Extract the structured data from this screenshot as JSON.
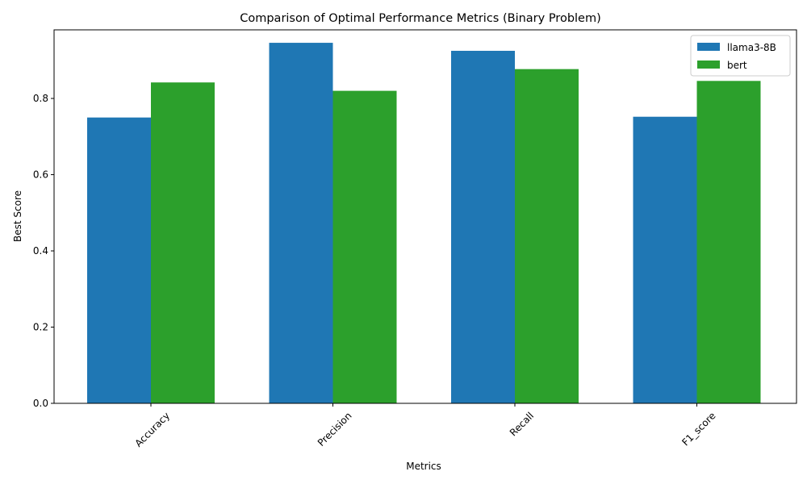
{
  "chart_data": {
    "type": "bar",
    "title": "Comparison of Optimal Performance Metrics (Binary Problem)",
    "xlabel": "Metrics",
    "ylabel": "Best Score",
    "categories": [
      "Accuracy",
      "Precision",
      "Recall",
      "F1_score"
    ],
    "series": [
      {
        "name": "llama3-8B",
        "color": "#1f77b4",
        "values": [
          0.75,
          0.946,
          0.925,
          0.752
        ]
      },
      {
        "name": "bert",
        "color": "#2ca02c",
        "values": [
          0.842,
          0.82,
          0.877,
          0.846
        ]
      }
    ],
    "ylim": [
      0,
      0.98
    ],
    "yticks": [
      "0.0",
      "0.2",
      "0.4",
      "0.6",
      "0.8"
    ],
    "grid": false,
    "legend_position": "top-right"
  }
}
